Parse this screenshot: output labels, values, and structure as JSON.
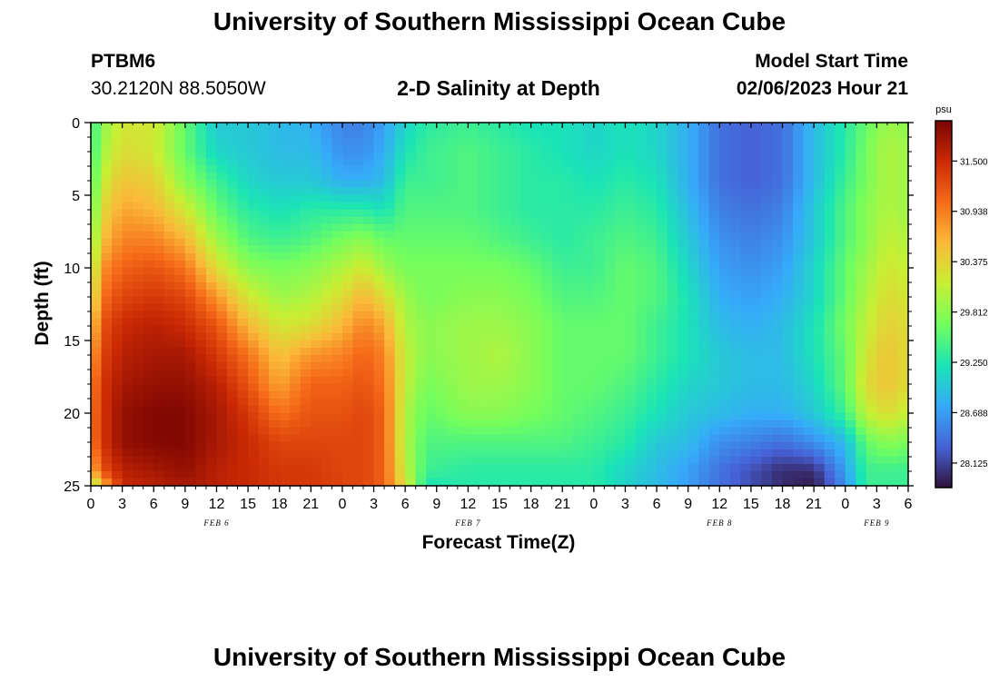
{
  "header": {
    "title": "University of Southern Mississippi Ocean Cube",
    "station_id": "PTBM6",
    "coords": "30.2120N  88.5050W",
    "chart_title": "2-D Salinity at Depth",
    "model_start_label": "Model Start Time",
    "model_start_value": "02/06/2023 Hour 21"
  },
  "footer": {
    "title": "University of Southern Mississippi Ocean Cube"
  },
  "chart_data": {
    "type": "heatmap",
    "title": "2-D Salinity at Depth",
    "xlabel": "Forecast Time(Z)",
    "ylabel": "Depth (ft)",
    "xlim": [
      0,
      78
    ],
    "ylim": [
      0,
      25
    ],
    "x_ticks": [
      0,
      3,
      6,
      9,
      12,
      15,
      18,
      21,
      24,
      27,
      30,
      33,
      36,
      39,
      42,
      45,
      48,
      51,
      54,
      57,
      60,
      63,
      66,
      69,
      72,
      75,
      78
    ],
    "x_tick_labels": [
      "0",
      "3",
      "6",
      "9",
      "12",
      "15",
      "18",
      "21",
      "0",
      "3",
      "6",
      "9",
      "12",
      "15",
      "18",
      "21",
      "0",
      "3",
      "6",
      "9",
      "12",
      "15",
      "18",
      "21",
      "0",
      "3",
      "6"
    ],
    "y_ticks": [
      0,
      5,
      10,
      15,
      20,
      25
    ],
    "y_tick_labels": [
      "0",
      "5",
      "10",
      "15",
      "20",
      "25"
    ],
    "date_labels": [
      {
        "x": 12,
        "label": "FEB 6"
      },
      {
        "x": 36,
        "label": "FEB 7"
      },
      {
        "x": 60,
        "label": "FEB 8"
      },
      {
        "x": 75,
        "label": "FEB 9"
      }
    ],
    "depths": [
      0,
      2,
      4,
      6,
      8,
      10,
      12,
      14,
      16,
      18,
      20,
      22,
      24,
      25
    ],
    "keyframes": [
      {
        "t": 0,
        "s": [
          29.3,
          29.3,
          29.4,
          29.5,
          29.6,
          29.8,
          30.0,
          30.3,
          30.6,
          30.8,
          30.9,
          30.9,
          30.5,
          29.8
        ]
      },
      {
        "t": 1,
        "s": [
          29.8,
          29.9,
          30.1,
          30.3,
          30.5,
          30.8,
          31.0,
          31.2,
          31.3,
          31.4,
          31.4,
          31.4,
          31.2,
          30.5
        ]
      },
      {
        "t": 3,
        "s": [
          30.2,
          30.3,
          30.5,
          30.7,
          30.9,
          31.1,
          31.3,
          31.5,
          31.6,
          31.7,
          31.8,
          31.8,
          31.6,
          31.5
        ]
      },
      {
        "t": 6,
        "s": [
          30.2,
          30.2,
          30.4,
          30.6,
          30.9,
          31.2,
          31.4,
          31.6,
          31.7,
          31.8,
          31.9,
          31.9,
          31.7,
          31.6
        ]
      },
      {
        "t": 9,
        "s": [
          29.6,
          29.6,
          29.8,
          30.2,
          30.6,
          31.0,
          31.3,
          31.5,
          31.7,
          31.8,
          31.9,
          31.9,
          31.8,
          31.7
        ]
      },
      {
        "t": 12,
        "s": [
          29.0,
          29.1,
          29.4,
          29.6,
          29.9,
          30.3,
          30.8,
          31.2,
          31.4,
          31.6,
          31.7,
          31.7,
          31.6,
          31.6
        ]
      },
      {
        "t": 15,
        "s": [
          29.0,
          29.0,
          29.1,
          29.3,
          29.5,
          29.8,
          30.2,
          30.6,
          31.0,
          31.2,
          31.4,
          31.5,
          31.5,
          31.5
        ]
      },
      {
        "t": 18,
        "s": [
          28.9,
          28.9,
          29.0,
          29.2,
          29.4,
          29.7,
          29.9,
          30.2,
          30.5,
          30.7,
          31.0,
          31.3,
          31.4,
          31.4
        ]
      },
      {
        "t": 21,
        "s": [
          28.8,
          28.9,
          29.0,
          29.3,
          29.5,
          29.8,
          30.0,
          30.3,
          30.8,
          31.1,
          31.2,
          31.3,
          31.4,
          31.4
        ]
      },
      {
        "t": 24,
        "s": [
          28.5,
          28.6,
          28.8,
          29.3,
          29.7,
          30.0,
          30.3,
          30.6,
          30.9,
          31.1,
          31.2,
          31.3,
          31.3,
          31.3
        ]
      },
      {
        "t": 26,
        "s": [
          28.5,
          28.6,
          28.8,
          29.3,
          29.8,
          30.2,
          30.6,
          30.9,
          31.1,
          31.2,
          31.3,
          31.3,
          31.3,
          31.3
        ]
      },
      {
        "t": 28,
        "s": [
          28.7,
          28.8,
          28.9,
          29.2,
          29.6,
          29.9,
          30.3,
          30.7,
          30.9,
          31.0,
          31.1,
          31.1,
          31.1,
          31.1
        ]
      },
      {
        "t": 30,
        "s": [
          29.1,
          29.2,
          29.4,
          29.5,
          29.6,
          29.7,
          29.9,
          30.0,
          30.1,
          30.1,
          30.0,
          30.0,
          30.1,
          30.3
        ]
      },
      {
        "t": 32,
        "s": [
          29.3,
          29.4,
          29.4,
          29.5,
          29.6,
          29.7,
          29.7,
          29.8,
          29.8,
          29.7,
          29.6,
          29.5,
          29.4,
          29.2
        ]
      },
      {
        "t": 36,
        "s": [
          29.4,
          29.5,
          29.5,
          29.5,
          29.6,
          29.7,
          29.8,
          29.9,
          29.9,
          29.9,
          29.8,
          29.5,
          29.3,
          29.3
        ]
      },
      {
        "t": 39,
        "s": [
          29.3,
          29.4,
          29.4,
          29.4,
          29.5,
          29.7,
          29.8,
          29.9,
          30.0,
          29.9,
          29.8,
          29.5,
          29.3,
          29.3
        ]
      },
      {
        "t": 42,
        "s": [
          29.2,
          29.3,
          29.3,
          29.3,
          29.4,
          29.6,
          29.7,
          29.8,
          29.8,
          29.8,
          29.7,
          29.5,
          29.3,
          29.3
        ]
      },
      {
        "t": 45,
        "s": [
          29.2,
          29.2,
          29.3,
          29.3,
          29.3,
          29.4,
          29.5,
          29.6,
          29.6,
          29.6,
          29.6,
          29.5,
          29.3,
          29.3
        ]
      },
      {
        "t": 48,
        "s": [
          29.1,
          29.1,
          29.2,
          29.3,
          29.4,
          29.4,
          29.5,
          29.6,
          29.6,
          29.6,
          29.5,
          29.4,
          29.3,
          29.3
        ]
      },
      {
        "t": 51,
        "s": [
          29.2,
          29.2,
          29.3,
          29.4,
          29.5,
          29.6,
          29.6,
          29.6,
          29.6,
          29.5,
          29.4,
          29.3,
          29.1,
          29.1
        ]
      },
      {
        "t": 54,
        "s": [
          29.1,
          29.1,
          29.2,
          29.3,
          29.4,
          29.5,
          29.5,
          29.4,
          29.4,
          29.3,
          29.2,
          29.0,
          28.9,
          28.9
        ]
      },
      {
        "t": 57,
        "s": [
          28.8,
          28.8,
          28.8,
          28.9,
          29.0,
          29.1,
          29.2,
          29.2,
          29.2,
          29.1,
          29.0,
          28.9,
          28.7,
          28.7
        ]
      },
      {
        "t": 60,
        "s": [
          28.4,
          28.4,
          28.4,
          28.5,
          28.6,
          28.7,
          28.8,
          28.9,
          29.0,
          29.0,
          28.9,
          28.6,
          28.4,
          28.4
        ]
      },
      {
        "t": 63,
        "s": [
          28.3,
          28.3,
          28.3,
          28.4,
          28.5,
          28.6,
          28.7,
          28.8,
          28.9,
          28.9,
          28.8,
          28.5,
          28.2,
          28.2
        ]
      },
      {
        "t": 66,
        "s": [
          28.4,
          28.4,
          28.4,
          28.5,
          28.6,
          28.7,
          28.8,
          28.9,
          28.9,
          28.9,
          28.8,
          28.4,
          28.0,
          28.0
        ]
      },
      {
        "t": 69,
        "s": [
          28.9,
          28.9,
          28.9,
          29.0,
          29.0,
          29.1,
          29.1,
          29.2,
          29.2,
          29.1,
          29.0,
          28.6,
          28.0,
          27.9
        ]
      },
      {
        "t": 72,
        "s": [
          29.3,
          29.3,
          29.4,
          29.5,
          29.5,
          29.6,
          29.6,
          29.7,
          29.6,
          29.6,
          29.4,
          28.9,
          28.7,
          28.6
        ]
      },
      {
        "t": 74,
        "s": [
          29.6,
          29.7,
          29.7,
          29.8,
          29.8,
          29.9,
          30.0,
          30.1,
          30.2,
          30.3,
          30.1,
          29.6,
          29.4,
          29.4
        ]
      },
      {
        "t": 76,
        "s": [
          29.9,
          30.0,
          30.0,
          30.0,
          30.1,
          30.2,
          30.3,
          30.4,
          30.5,
          30.5,
          30.3,
          29.8,
          29.4,
          29.4
        ]
      },
      {
        "t": 78,
        "s": [
          29.8,
          29.9,
          29.9,
          29.9,
          30.0,
          30.1,
          30.2,
          30.3,
          30.3,
          30.3,
          30.1,
          29.7,
          29.4,
          29.4
        ]
      }
    ],
    "colorbar": {
      "unit": "psu",
      "min": 27.85,
      "max": 31.95,
      "tick_values": [
        28.125,
        28.688,
        29.25,
        29.812,
        30.375,
        30.938,
        31.5
      ],
      "tick_labels": [
        "28.125",
        "28.688",
        "29.250",
        "29.812",
        "30.375",
        "30.938",
        "31.500"
      ],
      "colors": [
        "#30123b",
        "#4662d7",
        "#36aaf9",
        "#1ae4b6",
        "#72fe5e",
        "#c8ef34",
        "#faba39",
        "#f66b19",
        "#cb2a04",
        "#7a0403"
      ]
    }
  }
}
